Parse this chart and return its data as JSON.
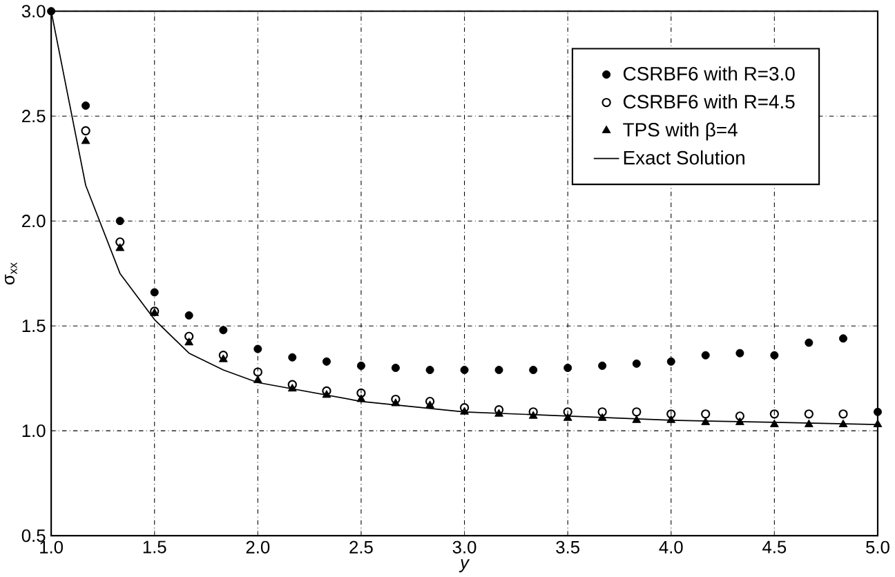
{
  "chart_data": {
    "type": "scatter",
    "xlabel": "y",
    "ylabel": "σ$_{xx}$",
    "xlim": [
      1.0,
      5.0
    ],
    "ylim": [
      0.5,
      3.0
    ],
    "xticks": [
      {
        "value": 1.0,
        "label": "1.0"
      },
      {
        "value": 1.5,
        "label": "1.5"
      },
      {
        "value": 2.0,
        "label": "2.0"
      },
      {
        "value": 2.5,
        "label": "2.5"
      },
      {
        "value": 3.0,
        "label": "3.0"
      },
      {
        "value": 3.5,
        "label": "3.5"
      },
      {
        "value": 4.0,
        "label": "4.0"
      },
      {
        "value": 4.5,
        "label": "4.5"
      },
      {
        "value": 5.0,
        "label": "5.0"
      }
    ],
    "yticks": [
      {
        "value": 0.5,
        "label": "0.5"
      },
      {
        "value": 1.0,
        "label": "1.0"
      },
      {
        "value": 1.5,
        "label": "1.5"
      },
      {
        "value": 2.0,
        "label": "2.0"
      },
      {
        "value": 2.5,
        "label": "2.5"
      },
      {
        "value": 3.0,
        "label": "3.0"
      }
    ],
    "grid": true,
    "legend": "top right",
    "x": [
      1.0,
      1.167,
      1.333,
      1.5,
      1.667,
      1.833,
      2.0,
      2.167,
      2.333,
      2.5,
      2.667,
      2.833,
      3.0,
      3.167,
      3.333,
      3.5,
      3.667,
      3.833,
      4.0,
      4.167,
      4.333,
      4.5,
      4.667,
      4.833,
      5.0
    ],
    "series": [
      {
        "name": "CSRBF6 with R=3.0",
        "color": "#000000",
        "marker": "circle",
        "values": [
          3.0,
          2.55,
          2.0,
          1.66,
          1.55,
          1.48,
          1.39,
          1.35,
          1.33,
          1.31,
          1.3,
          1.29,
          1.29,
          1.29,
          1.29,
          1.3,
          1.31,
          1.32,
          1.33,
          1.36,
          1.37,
          1.36,
          1.42,
          1.44,
          1.09
        ]
      },
      {
        "name": "CSRBF6 with R=4.5",
        "color": "#000000",
        "marker": "circle",
        "values": [
          null,
          2.43,
          1.9,
          1.57,
          1.45,
          1.36,
          1.28,
          1.22,
          1.19,
          1.18,
          1.15,
          1.14,
          1.11,
          1.1,
          1.09,
          1.09,
          1.09,
          1.09,
          1.08,
          1.08,
          1.07,
          1.08,
          1.08,
          1.08,
          null
        ]
      },
      {
        "name": "TPS with  β=4",
        "color": "#000000",
        "marker": "triangle",
        "values": [
          null,
          2.38,
          1.87,
          1.56,
          1.42,
          1.34,
          1.24,
          1.2,
          1.17,
          1.15,
          1.13,
          1.12,
          1.09,
          1.08,
          1.07,
          1.06,
          1.06,
          1.05,
          1.05,
          1.04,
          1.04,
          1.03,
          1.03,
          1.03,
          1.03
        ]
      },
      {
        "name": "Exact Solution",
        "type": "line",
        "color": "#000000",
        "marker": "none",
        "line_style": "solid",
        "x": [
          1.0,
          1.167,
          1.333,
          1.5,
          1.667,
          1.833,
          2.0,
          2.5,
          3.0,
          3.5,
          4.0,
          4.5,
          5.0
        ],
        "values": [
          3.0,
          2.17,
          1.75,
          1.53,
          1.37,
          1.29,
          1.23,
          1.14,
          1.09,
          1.07,
          1.05,
          1.04,
          1.03
        ]
      }
    ]
  }
}
